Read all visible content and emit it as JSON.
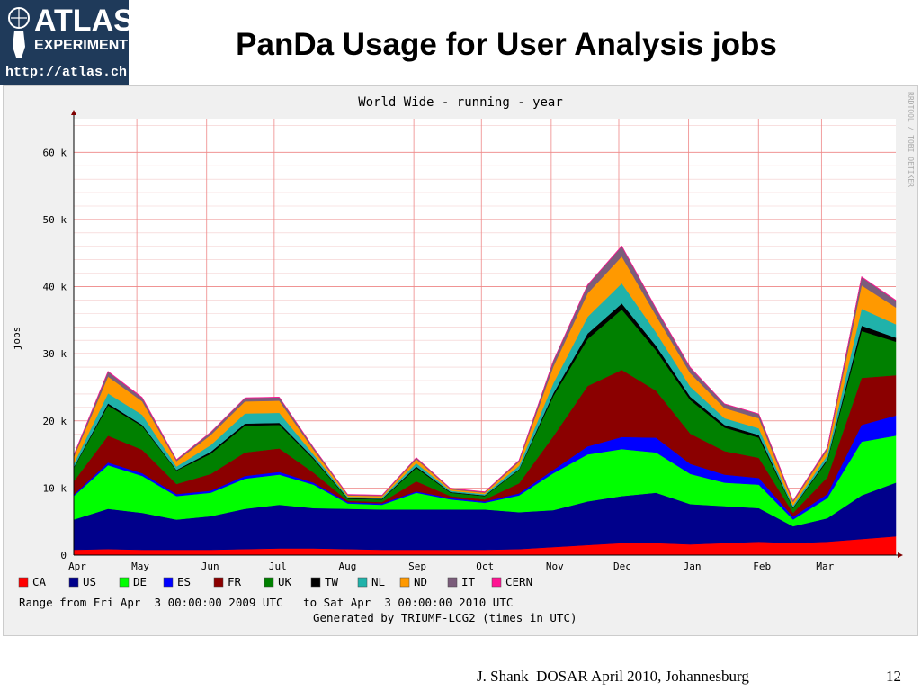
{
  "slide": {
    "title": "PanDa Usage for User Analysis jobs",
    "footer": "J. Shank  DOSAR April 2010, Johannesburg",
    "page_number": "12"
  },
  "logo": {
    "line1": "ATLAS",
    "line2": "EXPERIMENT",
    "url": "http://atlas.ch"
  },
  "chart_data": {
    "type": "area",
    "stacked": true,
    "title": "World Wide - running - year",
    "ylabel": "jobs",
    "xlabel": "",
    "ylim": [
      0,
      65000
    ],
    "y_ticks": [
      0,
      10000,
      20000,
      30000,
      40000,
      50000,
      60000
    ],
    "y_tick_labels": [
      "0",
      "10 k",
      "20 k",
      "30 k",
      "40 k",
      "50 k",
      "60 k"
    ],
    "x_tick_labels": [
      "Apr",
      "May",
      "Jun",
      "Jul",
      "Aug",
      "Sep",
      "Oct",
      "Nov",
      "Dec",
      "Jan",
      "Feb",
      "Mar"
    ],
    "watermark": "RRDTOOL / TOBI OETIKER",
    "range_text": "Range from Fri Apr  3 00:00:00 2009 UTC   to Sat Apr  3 00:00:00 2010 UTC",
    "generated_text": "Generated by TRIUMF-LCG2 (times in UTC)",
    "x": [
      "Apr-03",
      "Apr-17",
      "May-01",
      "May-15",
      "Jun-01",
      "Jun-15",
      "Jul-01",
      "Jul-15",
      "Aug-01",
      "Aug-15",
      "Sep-01",
      "Sep-15",
      "Oct-01",
      "Oct-15",
      "Nov-01",
      "Nov-15",
      "Dec-01",
      "Dec-15",
      "Jan-01",
      "Jan-15",
      "Feb-01",
      "Feb-15",
      "Mar-01",
      "Mar-15",
      "Apr-01"
    ],
    "series": [
      {
        "name": "CA",
        "color": "#ff0000",
        "values": [
          800,
          900,
          800,
          800,
          800,
          900,
          1000,
          1000,
          900,
          800,
          800,
          800,
          800,
          900,
          1200,
          1500,
          1800,
          1800,
          1600,
          1800,
          2000,
          1800,
          2000,
          2400,
          2800
        ]
      },
      {
        "name": "US",
        "color": "#00008b",
        "values": [
          4500,
          6000,
          5500,
          4500,
          5000,
          6000,
          6500,
          6000,
          6000,
          6000,
          6000,
          6000,
          6000,
          5500,
          5500,
          6500,
          7000,
          7500,
          6000,
          5500,
          5000,
          2500,
          3500,
          6500,
          8000
        ]
      },
      {
        "name": "DE",
        "color": "#00ff00",
        "values": [
          3500,
          6500,
          5500,
          3500,
          3500,
          4500,
          4500,
          3500,
          800,
          700,
          2500,
          1500,
          1000,
          2500,
          5500,
          7000,
          7000,
          6000,
          4500,
          3500,
          3500,
          1000,
          3000,
          8000,
          7000
        ]
      },
      {
        "name": "ES",
        "color": "#0000ff",
        "values": [
          200,
          400,
          400,
          300,
          300,
          400,
          400,
          300,
          200,
          200,
          200,
          200,
          200,
          300,
          500,
          1200,
          1800,
          2200,
          1500,
          1200,
          1000,
          400,
          600,
          2500,
          3000
        ]
      },
      {
        "name": "FR",
        "color": "#8b0000",
        "values": [
          2000,
          4000,
          3500,
          1500,
          2500,
          3500,
          3500,
          1500,
          200,
          200,
          1500,
          300,
          300,
          1500,
          5000,
          9000,
          10000,
          7000,
          4500,
          3500,
          3000,
          600,
          2500,
          7000,
          6000
        ]
      },
      {
        "name": "UK",
        "color": "#008000",
        "values": [
          2000,
          4500,
          3500,
          2000,
          3000,
          4000,
          3500,
          2000,
          300,
          400,
          2000,
          500,
          500,
          2000,
          6000,
          7000,
          9000,
          6000,
          5000,
          3500,
          3000,
          700,
          2500,
          7000,
          5000
        ]
      },
      {
        "name": "TW",
        "color": "#000000",
        "values": [
          100,
          300,
          200,
          100,
          300,
          300,
          300,
          200,
          100,
          100,
          200,
          100,
          100,
          100,
          400,
          800,
          900,
          700,
          500,
          400,
          400,
          100,
          200,
          800,
          600
        ]
      },
      {
        "name": "NL",
        "color": "#20b2aa",
        "values": [
          500,
          1500,
          1500,
          500,
          1000,
          1500,
          1500,
          500,
          200,
          200,
          500,
          200,
          200,
          500,
          1500,
          2500,
          3000,
          2000,
          1500,
          1000,
          1000,
          300,
          600,
          2500,
          2000
        ]
      },
      {
        "name": "ND",
        "color": "#ff9900",
        "values": [
          1000,
          2500,
          2000,
          800,
          1500,
          1800,
          1800,
          700,
          200,
          200,
          600,
          200,
          200,
          600,
          2500,
          3500,
          4000,
          2500,
          2000,
          1500,
          1500,
          500,
          800,
          3500,
          2500
        ]
      },
      {
        "name": "IT",
        "color": "#7b5d7b",
        "values": [
          300,
          700,
          500,
          200,
          400,
          500,
          500,
          300,
          100,
          100,
          200,
          100,
          100,
          200,
          800,
          1200,
          1500,
          1000,
          800,
          600,
          600,
          200,
          300,
          1200,
          1000
        ]
      },
      {
        "name": "CERN",
        "color": "#ff1493",
        "values": [
          50,
          100,
          100,
          50,
          50,
          50,
          50,
          50,
          50,
          50,
          50,
          50,
          50,
          50,
          50,
          100,
          100,
          100,
          100,
          50,
          50,
          50,
          50,
          100,
          100
        ]
      }
    ]
  }
}
